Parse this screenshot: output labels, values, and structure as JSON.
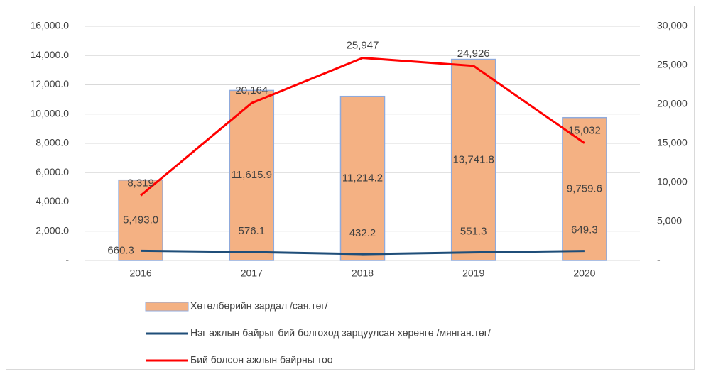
{
  "chart_data": {
    "type": "bar-line",
    "categories": [
      "2016",
      "2017",
      "2018",
      "2019",
      "2020"
    ],
    "series": [
      {
        "name": "Хөтөлбөрийн зардал /сая.төг/",
        "type": "bar",
        "color": "#f4b183",
        "axis": "y",
        "values": [
          5493.0,
          11615.9,
          11214.2,
          13741.8,
          9759.6
        ],
        "value_labels": [
          "5,493.0",
          "11,615.9",
          "11,214.2",
          "13,741.8",
          "9,759.6"
        ]
      },
      {
        "name": "Нэг ажлын байрыг бий болгоход зарцуулсан хөрөнгө /мянган.төг/",
        "type": "line",
        "color": "#1f4e79",
        "axis": "y",
        "values": [
          660.3,
          576.1,
          432.2,
          551.3,
          649.3
        ]
      },
      {
        "name": "Бий болсон ажлын байрны тоо",
        "type": "line",
        "color": "#ff0000",
        "axis": "y2",
        "values": [
          8319,
          20164,
          25947,
          24926,
          15032
        ],
        "value_labels": [
          "8,319",
          "20,164",
          "25,947",
          "24,926",
          "15,032"
        ]
      }
    ],
    "ylim": [
      0,
      16000
    ],
    "yticks": [
      {
        "value": 0,
        "label": "-"
      },
      {
        "value": 2000,
        "label": "2,000.0"
      },
      {
        "value": 4000,
        "label": "4,000.0"
      },
      {
        "value": 6000,
        "label": "6,000.0"
      },
      {
        "value": 8000,
        "label": "8,000.0"
      },
      {
        "value": 10000,
        "label": "10,000.0"
      },
      {
        "value": 12000,
        "label": "12,000.0"
      },
      {
        "value": 14000,
        "label": "14,000.0"
      },
      {
        "value": 16000,
        "label": "16,000.0"
      }
    ],
    "y2lim": [
      0,
      30000
    ],
    "y2ticks": [
      {
        "value": 0,
        "label": "-"
      },
      {
        "value": 5000,
        "label": "5,000"
      },
      {
        "value": 10000,
        "label": "10,000"
      },
      {
        "value": 15000,
        "label": "15,000"
      },
      {
        "value": 20000,
        "label": "20,000"
      },
      {
        "value": 25000,
        "label": "25,000"
      },
      {
        "value": 30000,
        "label": "30,000"
      }
    ],
    "grid": true,
    "legend": "bottom"
  }
}
